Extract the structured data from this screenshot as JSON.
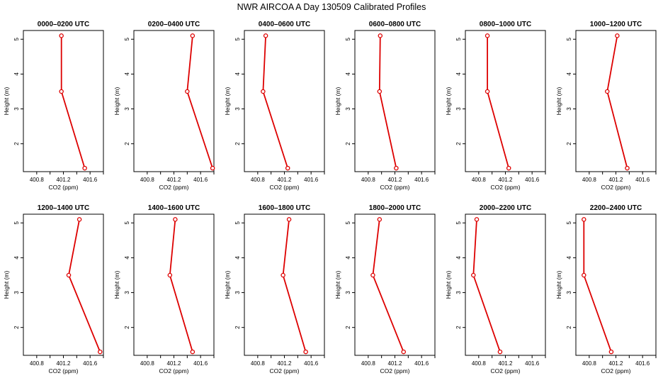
{
  "figure": {
    "title": "NWR AIRCOA A  Day 130509  Calibrated Profiles"
  },
  "colors": {
    "series": "#dd0000",
    "axes": "#000000",
    "background": "#ffffff"
  },
  "chart_data": [
    {
      "type": "line",
      "title": "0000–0200 UTC",
      "xlabel": "CO2 (ppm)",
      "ylabel": "Height (m)",
      "xlim": [
        400.6,
        401.8
      ],
      "ylim": [
        1.2,
        5.25
      ],
      "x_ticks": [
        "400.8",
        "401.2",
        "401.6"
      ],
      "y_ticks": [
        "2",
        "3",
        "4",
        "5"
      ],
      "grid": false,
      "series": [
        {
          "heights": [
            1.3,
            3.5,
            5.1
          ],
          "values": [
            401.52,
            401.17,
            401.17
          ]
        }
      ]
    },
    {
      "type": "line",
      "title": "0200–0400 UTC",
      "xlabel": "CO2 (ppm)",
      "ylabel": "Height (m)",
      "xlim": [
        400.6,
        401.8
      ],
      "ylim": [
        1.2,
        5.25
      ],
      "x_ticks": [
        "400.8",
        "401.2",
        "401.6"
      ],
      "y_ticks": [
        "2",
        "3",
        "4",
        "5"
      ],
      "grid": false,
      "series": [
        {
          "heights": [
            1.3,
            3.5,
            5.1
          ],
          "values": [
            401.78,
            401.4,
            401.48
          ]
        }
      ]
    },
    {
      "type": "line",
      "title": "0400–0600 UTC",
      "xlabel": "CO2 (ppm)",
      "ylabel": "Height (m)",
      "xlim": [
        400.6,
        401.8
      ],
      "ylim": [
        1.2,
        5.25
      ],
      "x_ticks": [
        "400.8",
        "401.2",
        "401.6"
      ],
      "y_ticks": [
        "2",
        "3",
        "4",
        "5"
      ],
      "grid": false,
      "series": [
        {
          "heights": [
            1.3,
            3.5,
            5.1
          ],
          "values": [
            401.25,
            400.88,
            400.92
          ]
        }
      ]
    },
    {
      "type": "line",
      "title": "0600–0800 UTC",
      "xlabel": "CO2 (ppm)",
      "ylabel": "Height (m)",
      "xlim": [
        400.6,
        401.8
      ],
      "ylim": [
        1.2,
        5.25
      ],
      "x_ticks": [
        "400.8",
        "401.2",
        "401.6"
      ],
      "y_ticks": [
        "2",
        "3",
        "4",
        "5"
      ],
      "grid": false,
      "series": [
        {
          "heights": [
            1.3,
            3.5,
            5.1
          ],
          "values": [
            401.22,
            400.97,
            400.98
          ]
        }
      ]
    },
    {
      "type": "line",
      "title": "0800–1000 UTC",
      "xlabel": "CO2 (ppm)",
      "ylabel": "Height (m)",
      "xlim": [
        400.6,
        401.8
      ],
      "ylim": [
        1.2,
        5.25
      ],
      "x_ticks": [
        "400.8",
        "401.2",
        "401.6"
      ],
      "y_ticks": [
        "2",
        "3",
        "4",
        "5"
      ],
      "grid": false,
      "series": [
        {
          "heights": [
            1.3,
            3.5,
            5.1
          ],
          "values": [
            401.25,
            400.93,
            400.93
          ]
        }
      ]
    },
    {
      "type": "line",
      "title": "1000–1200 UTC",
      "xlabel": "CO2 (ppm)",
      "ylabel": "Height (m)",
      "xlim": [
        400.6,
        401.8
      ],
      "ylim": [
        1.2,
        5.25
      ],
      "x_ticks": [
        "400.8",
        "401.2",
        "401.6"
      ],
      "y_ticks": [
        "2",
        "3",
        "4",
        "5"
      ],
      "grid": false,
      "series": [
        {
          "heights": [
            1.3,
            3.5,
            5.1
          ],
          "values": [
            401.37,
            401.07,
            401.22
          ]
        }
      ]
    },
    {
      "type": "line",
      "title": "1200–1400 UTC",
      "xlabel": "CO2 (ppm)",
      "ylabel": "Height (m)",
      "xlim": [
        400.6,
        401.8
      ],
      "ylim": [
        1.2,
        5.25
      ],
      "x_ticks": [
        "400.8",
        "401.2",
        "401.6"
      ],
      "y_ticks": [
        "2",
        "3",
        "4",
        "5"
      ],
      "grid": false,
      "series": [
        {
          "heights": [
            1.3,
            3.5,
            5.1
          ],
          "values": [
            401.75,
            401.28,
            401.44
          ]
        }
      ]
    },
    {
      "type": "line",
      "title": "1400–1600 UTC",
      "xlabel": "CO2 (ppm)",
      "ylabel": "Height (m)",
      "xlim": [
        400.6,
        401.8
      ],
      "ylim": [
        1.2,
        5.25
      ],
      "x_ticks": [
        "400.8",
        "401.2",
        "401.6"
      ],
      "y_ticks": [
        "2",
        "3",
        "4",
        "5"
      ],
      "grid": false,
      "series": [
        {
          "heights": [
            1.3,
            3.5,
            5.1
          ],
          "values": [
            401.48,
            401.14,
            401.22
          ]
        }
      ]
    },
    {
      "type": "line",
      "title": "1600–1800 UTC",
      "xlabel": "CO2 (ppm)",
      "ylabel": "Height (m)",
      "xlim": [
        400.6,
        401.8
      ],
      "ylim": [
        1.2,
        5.25
      ],
      "x_ticks": [
        "400.8",
        "401.2",
        "401.6"
      ],
      "y_ticks": [
        "2",
        "3",
        "4",
        "5"
      ],
      "grid": false,
      "series": [
        {
          "heights": [
            1.3,
            3.5,
            5.1
          ],
          "values": [
            401.52,
            401.18,
            401.27
          ]
        }
      ]
    },
    {
      "type": "line",
      "title": "1800–2000 UTC",
      "xlabel": "CO2 (ppm)",
      "ylabel": "Height (m)",
      "xlim": [
        400.6,
        401.8
      ],
      "ylim": [
        1.2,
        5.25
      ],
      "x_ticks": [
        "400.8",
        "401.2",
        "401.6"
      ],
      "y_ticks": [
        "2",
        "3",
        "4",
        "5"
      ],
      "grid": false,
      "series": [
        {
          "heights": [
            1.3,
            3.5,
            5.1
          ],
          "values": [
            401.33,
            400.87,
            400.97
          ]
        }
      ]
    },
    {
      "type": "line",
      "title": "2000–2200 UTC",
      "xlabel": "CO2 (ppm)",
      "ylabel": "Height (m)",
      "xlim": [
        400.6,
        401.8
      ],
      "ylim": [
        1.2,
        5.25
      ],
      "x_ticks": [
        "400.8",
        "401.2",
        "401.6"
      ],
      "y_ticks": [
        "2",
        "3",
        "4",
        "5"
      ],
      "grid": false,
      "series": [
        {
          "heights": [
            1.3,
            3.5,
            5.1
          ],
          "values": [
            401.12,
            400.72,
            400.77
          ]
        }
      ]
    },
    {
      "type": "line",
      "title": "2200–2400 UTC",
      "xlabel": "CO2 (ppm)",
      "ylabel": "Height (m)",
      "xlim": [
        400.6,
        401.8
      ],
      "ylim": [
        1.2,
        5.25
      ],
      "x_ticks": [
        "400.8",
        "401.2",
        "401.6"
      ],
      "y_ticks": [
        "2",
        "3",
        "4",
        "5"
      ],
      "grid": false,
      "series": [
        {
          "heights": [
            1.3,
            3.5,
            5.1
          ],
          "values": [
            401.13,
            400.72,
            400.72
          ]
        }
      ]
    }
  ]
}
